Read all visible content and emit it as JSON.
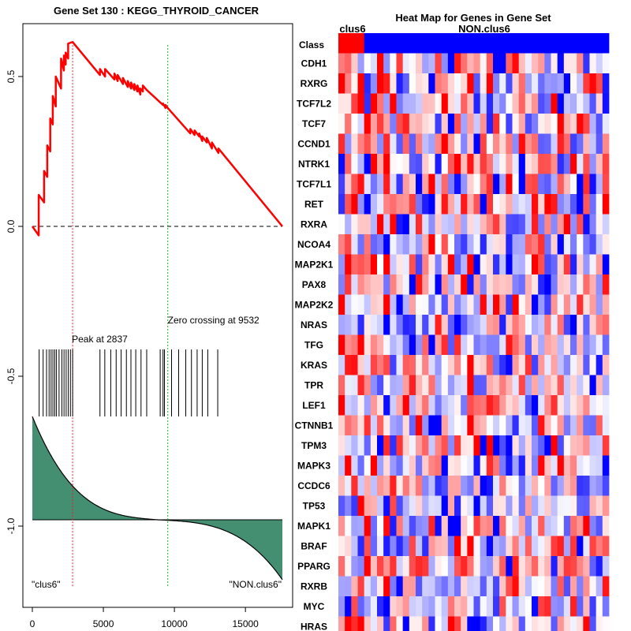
{
  "chart_data": [
    {
      "type": "line",
      "title": "Gene Set  130 : KEGG_THYROID_CANCER",
      "xlim": [
        0,
        17600
      ],
      "ylim": [
        -1.25,
        0.68
      ],
      "xticks": [
        0,
        5000,
        10000,
        15000
      ],
      "yticks": [
        0.5,
        0.0,
        -0.5,
        -1.0
      ],
      "ytick_labels": [
        "0.5",
        "0.0",
        "-0.5",
        "-1.0"
      ],
      "running_es": {
        "x": [
          0,
          450,
          450,
          830,
          830,
          1050,
          1050,
          1260,
          1260,
          1440,
          1440,
          1650,
          1650,
          2020,
          2020,
          2220,
          2220,
          2350,
          2350,
          2520,
          2520,
          2837,
          4760,
          4760,
          5120,
          5120,
          5780,
          5780,
          6010,
          6010,
          6380,
          6380,
          6720,
          6720,
          6950,
          6950,
          7180,
          7180,
          7400,
          7400,
          7600,
          7600,
          7780,
          7780,
          8050,
          9200,
          9200,
          9370,
          9370,
          9532,
          11120,
          11120,
          11420,
          11420,
          11750,
          11750,
          11960,
          11960,
          12280,
          12280,
          12640,
          12640,
          13100,
          13100,
          17600
        ],
        "y": [
          0.0,
          -0.03,
          0.105,
          0.08,
          0.185,
          0.165,
          0.27,
          0.25,
          0.36,
          0.34,
          0.435,
          0.4,
          0.5,
          0.46,
          0.56,
          0.52,
          0.57,
          0.54,
          0.58,
          0.56,
          0.61,
          0.615,
          0.505,
          0.525,
          0.5,
          0.525,
          0.49,
          0.51,
          0.485,
          0.505,
          0.475,
          0.495,
          0.465,
          0.485,
          0.46,
          0.48,
          0.455,
          0.475,
          0.45,
          0.47,
          0.44,
          0.46,
          0.45,
          0.47,
          0.455,
          0.405,
          0.41,
          0.395,
          0.405,
          0.395,
          0.31,
          0.325,
          0.305,
          0.32,
          0.3,
          0.31,
          0.285,
          0.3,
          0.28,
          0.295,
          0.26,
          0.28,
          0.245,
          0.26,
          0.0
        ]
      },
      "hits_x": [
        480,
        760,
        1000,
        1180,
        1320,
        1450,
        1580,
        1700,
        1880,
        2080,
        2230,
        2380,
        2530,
        2680,
        2837,
        4760,
        5100,
        5520,
        5900,
        6250,
        6620,
        6940,
        7280,
        7650,
        8050,
        9000,
        9200,
        9300,
        9800,
        10300,
        10800,
        11200,
        11600,
        11960,
        12350,
        13050
      ],
      "ranked_metric_range": [
        0.19,
        -0.22
      ],
      "annotations": {
        "peak": "Peak at 2837",
        "zero_crossing": "Zero crossing at 9532",
        "left_class": "\"clus6\"",
        "right_class": "\"NON.clus6\""
      },
      "peak_x": 2837,
      "zero_crossing_x": 9532
    },
    {
      "type": "heatmap",
      "title": "Heat Map for Genes in Gene Set",
      "class_row_label": "Class",
      "class_labels": [
        "clus6",
        "NON.clus6"
      ],
      "n_samples": 42,
      "n_clus6": 4,
      "genes": [
        "CDH1",
        "RXRG",
        "TCF7L2",
        "TCF7",
        "CCND1",
        "NTRK1",
        "TCF7L1",
        "RET",
        "RXRA",
        "NCOA4",
        "MAP2K1",
        "PAX8",
        "MAP2K2",
        "NRAS",
        "TFG",
        "KRAS",
        "TPR",
        "LEF1",
        "CTNNB1",
        "TPM3",
        "MAPK3",
        "CCDC6",
        "TP53",
        "MAPK1",
        "BRAF",
        "PPARG",
        "RXRB",
        "MYC",
        "HRAS"
      ],
      "value_range": [
        -1,
        1
      ],
      "color_low": "#0000ff",
      "color_mid": "#ffffff",
      "color_high": "#ff0000"
    }
  ]
}
